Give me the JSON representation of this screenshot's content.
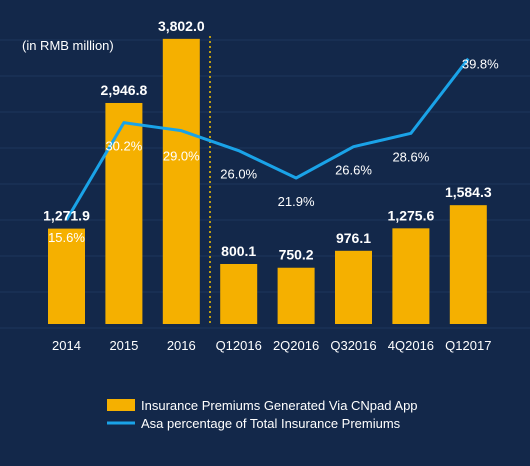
{
  "chart_data": {
    "type": "bar",
    "unit_label": "(in RMB million)",
    "categories": [
      "2014",
      "2015",
      "2016",
      "Q12016",
      "2Q2016",
      "Q32016",
      "4Q2016",
      "Q12017"
    ],
    "series": [
      {
        "name": "Insurance Premiums Generated Via CNpad App",
        "type": "bar",
        "values": [
          1271.9,
          2946.8,
          3802.0,
          800.1,
          750.2,
          976.1,
          1275.6,
          1584.3
        ],
        "labels": [
          "1,271.9",
          "2,946.8",
          "3,802.0",
          "800.1",
          "750.2",
          "976.1",
          "1,275.6",
          "1,584.3"
        ],
        "color": "#f5b000"
      },
      {
        "name": "Asa percentage of Total Insurance Premiums",
        "type": "line",
        "axis": "right",
        "values": [
          15.6,
          30.2,
          29.0,
          26.0,
          21.9,
          26.6,
          28.6,
          39.8
        ],
        "labels": [
          "15.6%",
          "30.2%",
          "29.0%",
          "26.0%",
          "21.9%",
          "26.6%",
          "28.6%",
          "39.8%"
        ],
        "color": "#1aa3e8"
      }
    ],
    "ylim": [
      0,
      4000
    ],
    "y2lim": [
      0,
      45
    ],
    "divider_after_index": 2,
    "legend_position": "bottom-center",
    "colors": {
      "background": "#13284a",
      "label_text": "#ffffff",
      "divider": "#f5c400"
    }
  }
}
